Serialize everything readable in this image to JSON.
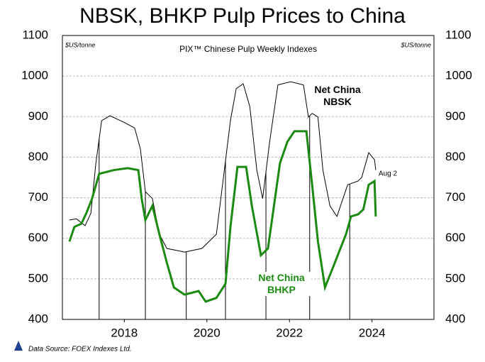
{
  "chart_data": {
    "type": "line",
    "title": "NBSK, BHKP Pulp Prices to China",
    "subtitle": "PIX™ Chinese Pulp Weekly Indexes",
    "y_unit_left": "$US/tonne",
    "y_unit_right": "$US/tonne",
    "source": "Data Source: FOEX Indexes Ltd.",
    "end_label": "Aug 2",
    "xlim": [
      2017,
      2026
    ],
    "xticks": [
      {
        "value": 2018.5,
        "label": "2018"
      },
      {
        "value": 2020.5,
        "label": "2020"
      },
      {
        "value": 2022.5,
        "label": "2022"
      },
      {
        "value": 2024.5,
        "label": "2024"
      }
    ],
    "ylim": [
      400,
      1100
    ],
    "yticks": [
      400,
      500,
      600,
      700,
      800,
      900,
      1000,
      1100
    ],
    "y2lim": [
      400,
      1100
    ],
    "y2ticks": [
      400,
      500,
      600,
      700,
      800,
      900,
      1000,
      1100
    ],
    "grid": true,
    "vertical_lines": [
      2017.89,
      2019.01,
      2020.0,
      2020.95,
      2021.93,
      2022.99,
      2023.96
    ],
    "series": [
      {
        "name": "Net China NBSK",
        "color": "#000000",
        "x": [
          2017.17,
          2017.34,
          2017.55,
          2017.69,
          2017.81,
          2017.95,
          2018.15,
          2018.49,
          2018.75,
          2018.89,
          2019.01,
          2019.18,
          2019.35,
          2019.53,
          2019.96,
          2020.38,
          2020.73,
          2020.9,
          2021.07,
          2021.21,
          2021.38,
          2021.54,
          2021.71,
          2021.85,
          2022.02,
          2022.22,
          2022.53,
          2022.84,
          2022.96,
          2023.05,
          2023.19,
          2023.31,
          2023.48,
          2023.65,
          2023.91,
          2024.16,
          2024.25,
          2024.42,
          2024.56,
          2024.59
        ],
        "values": [
          645,
          648,
          631,
          662,
          785,
          890,
          902,
          886,
          872,
          820,
          715,
          698,
          610,
          575,
          566,
          575,
          610,
          750,
          890,
          969,
          981,
          925,
          768,
          698,
          838,
          978,
          986,
          978,
          899,
          908,
          899,
          768,
          680,
          654,
          732,
          741,
          750,
          811,
          794,
          768
        ]
      },
      {
        "name": "Net China BHKP",
        "color": "#1a8a10",
        "x": [
          2017.17,
          2017.29,
          2017.46,
          2017.58,
          2017.72,
          2017.89,
          2018.24,
          2018.58,
          2018.84,
          2018.92,
          2019.01,
          2019.18,
          2019.35,
          2019.53,
          2019.7,
          2019.96,
          2020.3,
          2020.47,
          2020.73,
          2020.95,
          2021.07,
          2021.24,
          2021.45,
          2021.59,
          2021.81,
          2021.98,
          2022.1,
          2022.27,
          2022.45,
          2022.62,
          2022.91,
          2023.05,
          2023.19,
          2023.36,
          2023.53,
          2023.7,
          2023.87,
          2023.99,
          2024.16,
          2024.29,
          2024.42,
          2024.56,
          2024.59
        ],
        "values": [
          592,
          628,
          636,
          662,
          698,
          759,
          768,
          773,
          768,
          698,
          645,
          680,
          610,
          540,
          479,
          461,
          470,
          444,
          453,
          488,
          628,
          776,
          776,
          680,
          558,
          575,
          662,
          785,
          838,
          864,
          864,
          732,
          592,
          479,
          522,
          566,
          610,
          654,
          659,
          671,
          732,
          741,
          654
        ]
      }
    ]
  }
}
